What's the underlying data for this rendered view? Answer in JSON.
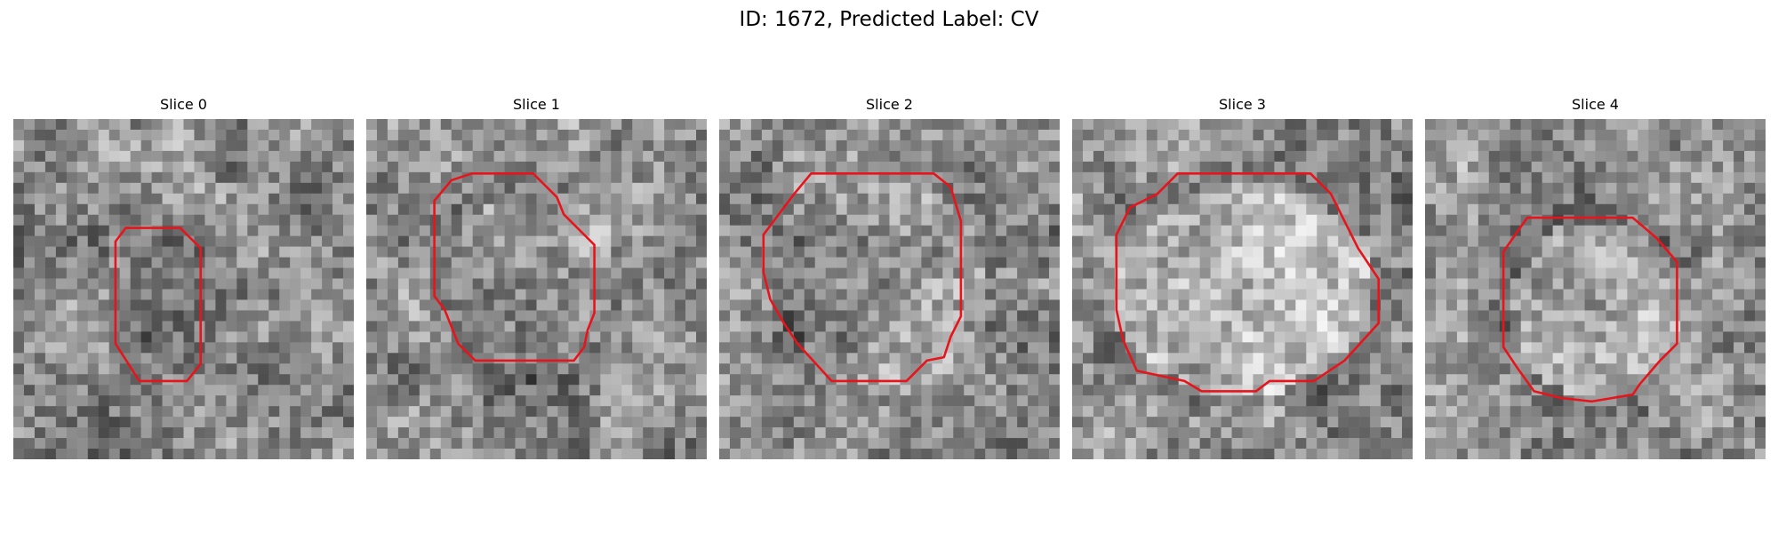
{
  "figure": {
    "title": "ID: 1672, Predicted Label: CV"
  },
  "panels": [
    {
      "title": "Slice 0"
    },
    {
      "title": "Slice 1"
    },
    {
      "title": "Slice 2"
    },
    {
      "title": "Slice 3"
    },
    {
      "title": "Slice 4"
    }
  ],
  "colors": {
    "contour": "#e8141c",
    "background": "#ffffff"
  }
}
